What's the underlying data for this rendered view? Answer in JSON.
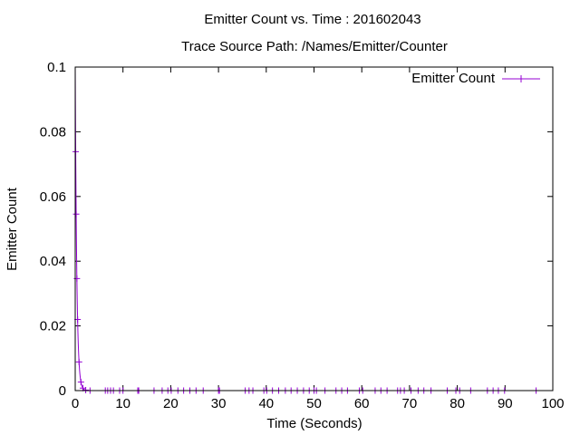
{
  "chart_data": {
    "type": "line",
    "title": "Emitter Count vs. Time : 201602043",
    "subtitle": "Trace Source Path: /Names/Emitter/Counter",
    "xlabel": "Time (Seconds)",
    "ylabel": "Emitter Count",
    "xlim": [
      0,
      100
    ],
    "ylim": [
      0,
      0.1
    ],
    "x_ticks": [
      "0",
      "10",
      "20",
      "30",
      "40",
      "50",
      "60",
      "70",
      "80",
      "90",
      "100"
    ],
    "y_ticks": [
      "0",
      "0.02",
      "0.04",
      "0.06",
      "0.08",
      "0.1"
    ],
    "grid": false,
    "legend": "top-right",
    "series": [
      {
        "name": "Emitter Count",
        "color": "#9400d3",
        "marker": "plus",
        "x": [
          0.1,
          0.2,
          0.35,
          0.5,
          0.8,
          1.2,
          1.6,
          2.2,
          3.1,
          6.3,
          6.8,
          7.4,
          8.0,
          9.3,
          10.0,
          13.1,
          13.3,
          16.5,
          18.2,
          19.4,
          20.1,
          21.5,
          22.7,
          24.0,
          25.3,
          26.8,
          30.0,
          30.2,
          35.6,
          36.4,
          37.2,
          39.5,
          40.1,
          41.3,
          42.6,
          44.0,
          45.2,
          46.5,
          47.8,
          49.0,
          50.0,
          50.5,
          52.3,
          54.6,
          55.8,
          57.0,
          59.5,
          60.2,
          62.8,
          64.0,
          65.3,
          67.5,
          68.1,
          68.9,
          70.3,
          71.8,
          73.0,
          74.5,
          77.9,
          79.7,
          80.5,
          82.8,
          86.3,
          87.5,
          88.6,
          89.9,
          96.5
        ]
      }
    ]
  }
}
